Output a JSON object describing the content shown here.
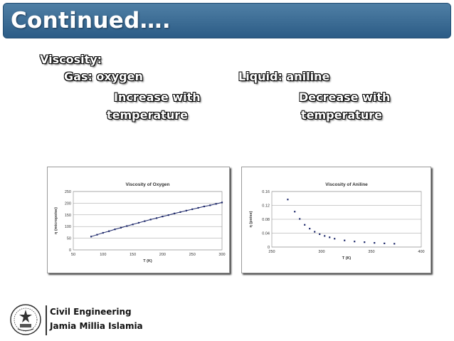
{
  "slide": {
    "title": "Continued….",
    "heading": "Viscosity:",
    "gas_label": "Gas: oxygen",
    "gas_trend_1": "Increase with",
    "gas_trend_2": "temperature",
    "liquid_label": "Liquid: aniline",
    "liquid_trend_1": "Decrease with",
    "liquid_trend_2": "temperature"
  },
  "footer": {
    "line1": "Civil Engineering",
    "line2": "Jamia Millia Islamia",
    "logo_icon": "university-emblem-icon"
  },
  "colors": {
    "title_bar": "#3b6a93",
    "marker": "#1f2a6b"
  },
  "chart_data": [
    {
      "type": "line",
      "title": "Viscosity of Oxygen",
      "xlabel": "T (K)",
      "ylabel": "η (micropoise)",
      "xlim": [
        50,
        300
      ],
      "ylim": [
        0,
        250
      ],
      "xticks": [
        50,
        100,
        150,
        200,
        250,
        300
      ],
      "yticks": [
        0,
        50,
        100,
        150,
        200,
        250
      ],
      "x": [
        80,
        90,
        100,
        110,
        120,
        130,
        140,
        150,
        160,
        170,
        180,
        190,
        200,
        210,
        220,
        230,
        240,
        250,
        260,
        270,
        280,
        290,
        300
      ],
      "y": [
        57,
        65,
        73,
        80,
        88,
        95,
        102,
        109,
        116,
        123,
        130,
        136,
        143,
        149,
        156,
        162,
        168,
        174,
        180,
        186,
        191,
        197,
        203
      ]
    },
    {
      "type": "scatter",
      "title": "Viscosity of Aniline",
      "xlabel": "T (K)",
      "ylabel": "η (poise)",
      "xlim": [
        250,
        400
      ],
      "ylim": [
        0,
        0.16
      ],
      "xticks": [
        250,
        300,
        350,
        400
      ],
      "yticks": [
        0,
        0.04,
        0.08,
        0.12,
        0.16
      ],
      "x": [
        266,
        273,
        278,
        283,
        288,
        293,
        298,
        303,
        308,
        313,
        323,
        333,
        343,
        353,
        363,
        373
      ],
      "y": [
        0.137,
        0.102,
        0.081,
        0.064,
        0.053,
        0.044,
        0.037,
        0.032,
        0.028,
        0.024,
        0.019,
        0.016,
        0.014,
        0.012,
        0.0105,
        0.0095
      ]
    }
  ]
}
